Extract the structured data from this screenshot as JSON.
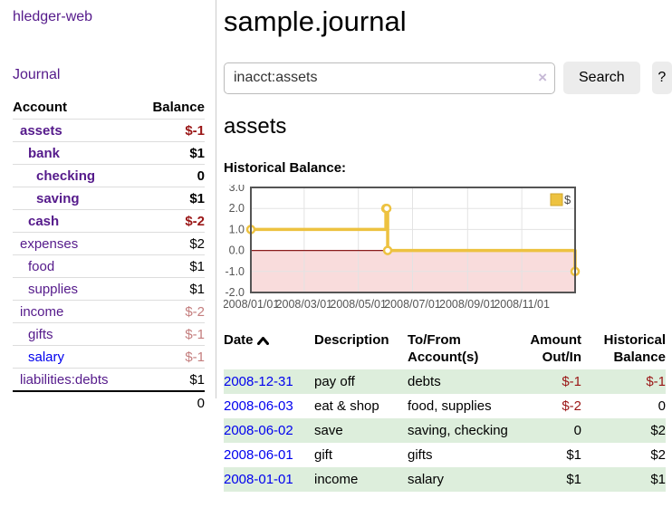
{
  "colors": {
    "link_purple": "#551a8b",
    "link_blue": "#0000ee",
    "negative_strong": "#9a1616",
    "negative_muted": "#c47e7e",
    "row_highlight_green": "#ddeedc",
    "button_gray": "#ececec",
    "chart_line_gold": "#edc240",
    "chart_negative_region": "#f9dcdc",
    "chart_zero_line": "#8b1c1c",
    "chart_border": "#545454"
  },
  "sidebar": {
    "app_title": "hledger-web",
    "nav_journal": "Journal",
    "accounts_table": {
      "headers": [
        "Account",
        "Balance"
      ],
      "rows": [
        {
          "account": "assets",
          "indent": 0,
          "bold": true,
          "link_color": "purple",
          "balance": "$-1",
          "balance_style": "neg"
        },
        {
          "account": "bank",
          "indent": 1,
          "bold": true,
          "link_color": "purple",
          "balance": "$1",
          "balance_style": "black"
        },
        {
          "account": "checking",
          "indent": 2,
          "bold": true,
          "link_color": "purple",
          "balance": "0",
          "balance_style": "black"
        },
        {
          "account": "saving",
          "indent": 2,
          "bold": true,
          "link_color": "purple",
          "balance": "$1",
          "balance_style": "black"
        },
        {
          "account": "cash",
          "indent": 1,
          "bold": true,
          "link_color": "purple",
          "balance": "$-2",
          "balance_style": "neg"
        },
        {
          "account": "expenses",
          "indent": 0,
          "bold": false,
          "link_color": "purple",
          "balance": "$2",
          "balance_style": "black"
        },
        {
          "account": "food",
          "indent": 1,
          "bold": false,
          "link_color": "purple",
          "balance": "$1",
          "balance_style": "black"
        },
        {
          "account": "supplies",
          "indent": 1,
          "bold": false,
          "link_color": "purple",
          "balance": "$1",
          "balance_style": "black"
        },
        {
          "account": "income",
          "indent": 0,
          "bold": false,
          "link_color": "purple",
          "balance": "$-2",
          "balance_style": "neg-muted"
        },
        {
          "account": "gifts",
          "indent": 1,
          "bold": false,
          "link_color": "purple",
          "balance": "$-1",
          "balance_style": "neg-muted"
        },
        {
          "account": "salary",
          "indent": 1,
          "bold": false,
          "link_color": "blue",
          "balance": "$-1",
          "balance_style": "neg-muted"
        },
        {
          "account": "liabilities:debts",
          "indent": 0,
          "bold": false,
          "link_color": "purple",
          "balance": "$1",
          "balance_style": "black"
        }
      ],
      "total": "0"
    }
  },
  "main": {
    "title": "sample.journal",
    "search": {
      "value": "inacct:assets",
      "clear_icon": "×",
      "search_button": "Search",
      "help_button": "?"
    },
    "section_title": "assets",
    "chart_label": "Historical Balance:",
    "register": {
      "headers": [
        "Date",
        "Description",
        "To/From Account(s)",
        "Amount Out/In",
        "Historical Balance"
      ],
      "rows": [
        {
          "date": "2008-12-31",
          "description": "pay off",
          "accounts": "debts",
          "amount": "$-1",
          "amount_neg": true,
          "balance": "$-1",
          "balance_neg": true,
          "highlight": true
        },
        {
          "date": "2008-06-03",
          "description": "eat & shop",
          "accounts": "food, supplies",
          "amount": "$-2",
          "amount_neg": true,
          "balance": "0",
          "balance_neg": false,
          "highlight": false
        },
        {
          "date": "2008-06-02",
          "description": "save",
          "accounts": "saving, checking",
          "amount": "0",
          "amount_neg": false,
          "balance": "$2",
          "balance_neg": false,
          "highlight": true
        },
        {
          "date": "2008-06-01",
          "description": "gift",
          "accounts": "gifts",
          "amount": "$1",
          "amount_neg": false,
          "balance": "$2",
          "balance_neg": false,
          "highlight": false
        },
        {
          "date": "2008-01-01",
          "description": "income",
          "accounts": "salary",
          "amount": "$1",
          "amount_neg": false,
          "balance": "$1",
          "balance_neg": false,
          "highlight": true
        }
      ]
    }
  },
  "chart_data": {
    "type": "line",
    "style": "step",
    "title": "Historical Balance",
    "series": [
      {
        "name": "$",
        "color": "#edc240",
        "points": [
          [
            "2008-01-01",
            1
          ],
          [
            "2008-06-01",
            2
          ],
          [
            "2008-06-02",
            2
          ],
          [
            "2008-06-03",
            0
          ],
          [
            "2008-12-31",
            -1
          ]
        ]
      }
    ],
    "x_range": [
      "2008-01-01",
      "2008-12-31"
    ],
    "x_ticks": [
      "2008/01/01",
      "2008/03/01",
      "2008/05/01",
      "2008/07/01",
      "2008/09/01",
      "2008/11/01"
    ],
    "y_ticks": [
      "3.0",
      "2.0",
      "1.0",
      "0.0",
      "-1.0",
      "-2.0"
    ],
    "ylim": [
      -2,
      3
    ],
    "grid": true,
    "legend_position": "top-right",
    "negative_region_fill": "#f9dcdc"
  }
}
